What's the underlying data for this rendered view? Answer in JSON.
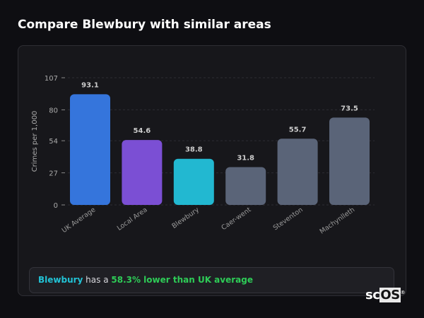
{
  "title": "Compare Blewbury with similar areas",
  "chart_data": {
    "type": "bar",
    "title": "",
    "xlabel": "",
    "ylabel": "Crimes per 1,000",
    "ylim": [
      0,
      107
    ],
    "yticks": [
      0,
      27,
      54,
      80,
      107
    ],
    "grid": true,
    "categories": [
      "UK Average",
      "Local Area",
      "Blewbury",
      "Caer-went",
      "Steventon",
      "Machynlleth"
    ],
    "values": [
      93.1,
      54.6,
      38.8,
      31.8,
      55.7,
      73.5
    ],
    "data_labels": [
      "93.1",
      "54.6",
      "38.8",
      "31.8",
      "55.7",
      "73.5"
    ],
    "colors": [
      "#3575dc",
      "#7b4fd4",
      "#22b8d1",
      "#5a6478",
      "#5a6478",
      "#5a6478"
    ]
  },
  "note": {
    "area": "Blewbury",
    "middle": " has a ",
    "highlight": "58.3% lower than UK average"
  },
  "watermark": {
    "a": "sc",
    "b": "OS",
    "mark": "®"
  }
}
